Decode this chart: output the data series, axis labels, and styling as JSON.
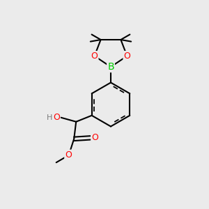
{
  "background_color": "#ebebeb",
  "bond_color": "#000000",
  "bond_width": 1.5,
  "atom_colors": {
    "O": "#ff0000",
    "B": "#00cc00",
    "C": "#000000",
    "H": "#7a7a7a"
  },
  "font_size": 9
}
